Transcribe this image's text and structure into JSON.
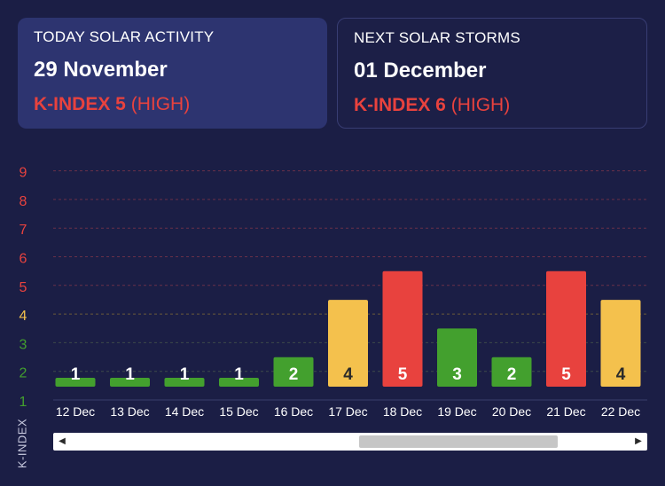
{
  "today": {
    "title": "TODAY SOLAR ACTIVITY",
    "date": "29 November",
    "kindex": "K-INDEX 5",
    "level": "(HIGH)"
  },
  "next": {
    "title": "NEXT SOLAR STORMS",
    "date": "01 December",
    "kindex": "K-INDEX 6",
    "level": "(HIGH)"
  },
  "colors": {
    "low": "#43a02e",
    "moderate": "#f4c14d",
    "high": "#e8423e",
    "background": "#1b1e45"
  },
  "chart_data": {
    "type": "bar",
    "ylabel": "K-INDEX",
    "ylim": [
      1,
      9
    ],
    "yticks": [
      "1",
      "2",
      "3",
      "4",
      "5",
      "6",
      "7",
      "8",
      "9"
    ],
    "categories": [
      "12 Dec",
      "13 Dec",
      "14 Dec",
      "15 Dec",
      "16 Dec",
      "17 Dec",
      "18 Dec",
      "19 Dec",
      "20 Dec",
      "21 Dec",
      "22 Dec"
    ],
    "values": [
      1,
      1,
      1,
      1,
      2,
      4,
      5,
      3,
      2,
      5,
      4
    ],
    "grid": true
  },
  "scrollbar": {
    "left_arrow": "◀",
    "right_arrow": "▶",
    "position": 0.52
  }
}
